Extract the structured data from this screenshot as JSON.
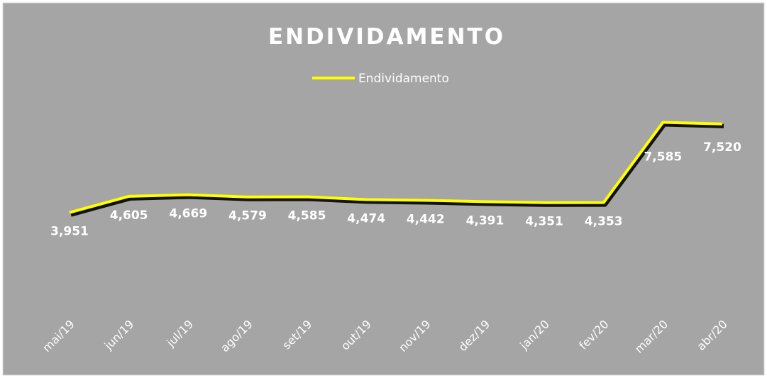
{
  "chart_data": {
    "type": "line",
    "title": "ENDIVIDAMENTO",
    "categories": [
      "mai/19",
      "jun/19",
      "jul/19",
      "ago/19",
      "set/19",
      "out/19",
      "nov/19",
      "dez/19",
      "jan/20",
      "fev/20",
      "mar/20",
      "abr/20"
    ],
    "series": [
      {
        "name": "Endividamento",
        "color": "#ffff00",
        "values": [
          3951,
          4605,
          4669,
          4579,
          4585,
          4474,
          4442,
          4391,
          4351,
          4353,
          7585,
          7520
        ],
        "value_labels": [
          "3,951",
          "4,605",
          "4,669",
          "4,579",
          "4,585",
          "4,474",
          "4,442",
          "4,391",
          "4,351",
          "4,353",
          "7,585",
          "7,520"
        ]
      }
    ],
    "ylim": [
      0,
      9000
    ],
    "legend": "top"
  }
}
